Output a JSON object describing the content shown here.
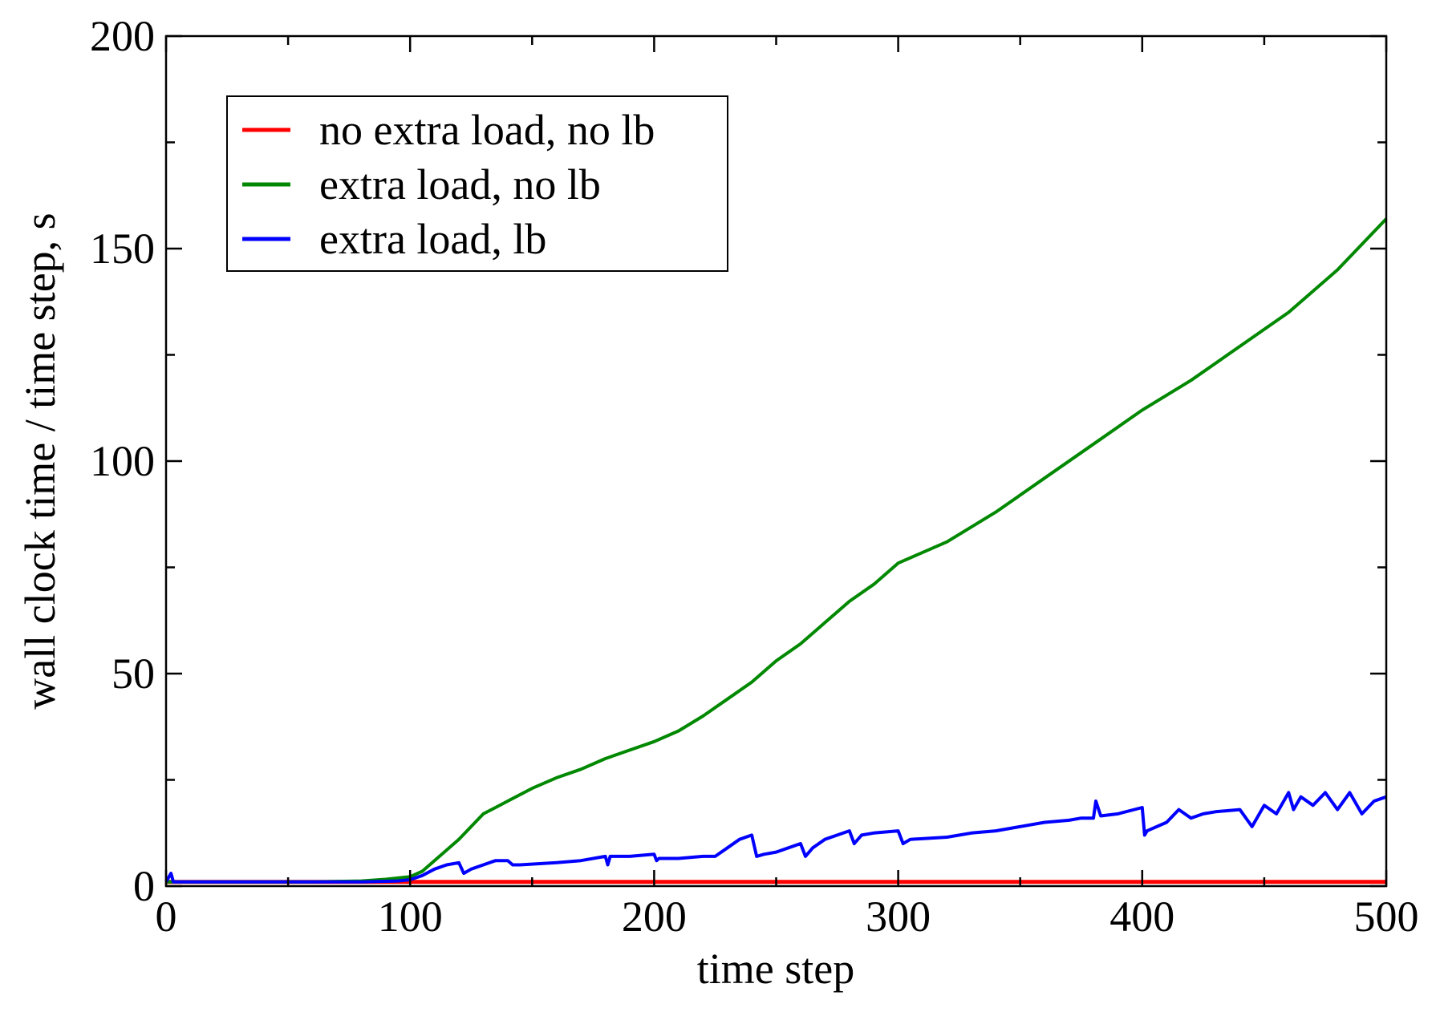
{
  "chart_data": {
    "type": "line",
    "title": "",
    "xlabel": "time step",
    "ylabel": "wall clock time / time step, s",
    "xlim": [
      0,
      500
    ],
    "ylim": [
      0,
      200
    ],
    "x_ticks": [
      0,
      100,
      200,
      300,
      400,
      500
    ],
    "y_ticks": [
      0,
      50,
      100,
      150,
      200
    ],
    "x_minor_step": 50,
    "y_minor_step": 25,
    "grid": false,
    "legend_position": "top-left",
    "series": [
      {
        "name": "no extra load, no lb",
        "color": "#ff0000",
        "x": [
          0,
          100,
          200,
          300,
          400,
          500
        ],
        "y": [
          1,
          1,
          1,
          1,
          1,
          1
        ]
      },
      {
        "name": "extra load, no lb",
        "color": "#008800",
        "x": [
          0,
          20,
          40,
          60,
          80,
          90,
          100,
          105,
          110,
          115,
          120,
          125,
          130,
          135,
          140,
          150,
          160,
          170,
          180,
          190,
          200,
          210,
          220,
          230,
          240,
          250,
          260,
          270,
          280,
          290,
          300,
          320,
          340,
          360,
          380,
          400,
          420,
          440,
          460,
          480,
          500
        ],
        "y": [
          1,
          1,
          1,
          1,
          1.2,
          1.6,
          2.2,
          3.5,
          6,
          8.5,
          11,
          14,
          17,
          18.5,
          20,
          23,
          25.5,
          27.5,
          30,
          32,
          34,
          36.5,
          40,
          44,
          48,
          53,
          57,
          62,
          67,
          71,
          76,
          81,
          88,
          96,
          104,
          112,
          119,
          127,
          135,
          145,
          157
        ]
      },
      {
        "name": "extra load, lb",
        "color": "#0000ff",
        "x": [
          0,
          2,
          3,
          5,
          20,
          40,
          60,
          80,
          95,
          100,
          105,
          110,
          115,
          120,
          122,
          125,
          130,
          135,
          140,
          142,
          145,
          160,
          170,
          180,
          181,
          182,
          190,
          200,
          201,
          202,
          210,
          220,
          225,
          230,
          235,
          240,
          242,
          245,
          250,
          255,
          260,
          262,
          265,
          270,
          275,
          280,
          282,
          285,
          290,
          300,
          302,
          305,
          320,
          330,
          340,
          350,
          360,
          370,
          375,
          380,
          381,
          383,
          390,
          400,
          401,
          402,
          410,
          415,
          420,
          425,
          430,
          440,
          445,
          450,
          455,
          460,
          462,
          465,
          470,
          475,
          480,
          485,
          490,
          495,
          500
        ],
        "y": [
          1,
          3,
          1,
          1,
          1,
          1,
          1,
          1,
          1.2,
          1.5,
          2.5,
          4,
          5,
          5.5,
          3,
          4,
          5,
          6,
          6,
          5,
          5,
          5.5,
          6,
          7,
          5,
          7,
          7,
          7.5,
          6,
          6.5,
          6.5,
          7,
          7,
          9,
          11,
          12,
          7,
          7.5,
          8,
          9,
          10,
          7,
          9,
          11,
          12,
          13,
          10,
          12,
          12.5,
          13,
          10,
          11,
          11.5,
          12.5,
          13,
          14,
          15,
          15.5,
          16,
          16,
          20,
          16.5,
          17,
          18.5,
          12,
          13,
          15,
          18,
          16,
          17,
          17.5,
          18,
          14,
          19,
          17,
          22,
          18,
          21,
          19,
          22,
          18,
          22,
          17,
          20,
          21
        ]
      }
    ]
  }
}
